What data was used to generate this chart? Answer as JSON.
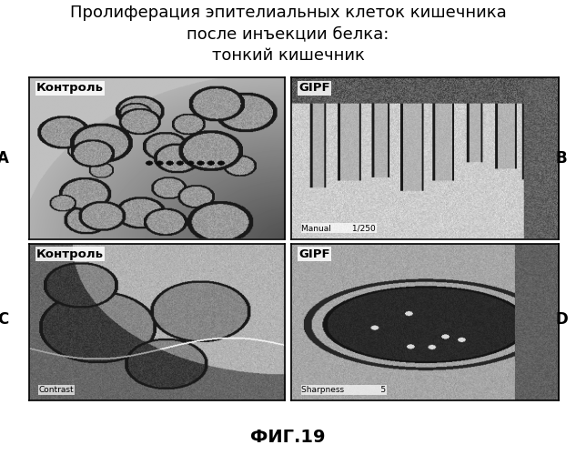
{
  "title_line1": "Пролиферация эпителиальных клеток кишечника",
  "title_line2": "после инъекции белка:",
  "title_line3": "тонкий кишечник",
  "panel_labels": [
    "A",
    "B",
    "C",
    "D"
  ],
  "panel_top_left_labels": [
    "Контроль",
    "GIPF",
    "Контроль",
    "GIPF"
  ],
  "panel_bottom_labels": [
    "",
    "Manual        1/250",
    "Contrast",
    "Sharpness              5"
  ],
  "figure_caption": "ФИГ.19",
  "bg_color": "#ffffff",
  "panel_bg": "#d0d0d0",
  "title_fontsize": 13,
  "caption_fontsize": 14,
  "label_fontsize": 11,
  "panel_label_fontsize": 12
}
